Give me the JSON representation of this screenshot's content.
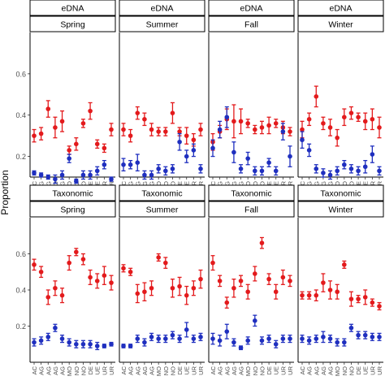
{
  "ylabel": "Proportion",
  "colors": {
    "red": "#e31a1c",
    "blue": "#1f2fbf",
    "strip_bg": "#ffffff",
    "frame": "#000000"
  },
  "chart_data": {
    "type": "scatter",
    "ylabel": "Proportion",
    "grid": false,
    "legend": "none",
    "x_ticks": [
      "AC",
      "AG",
      "AG",
      "AG",
      "AG",
      "MO",
      "NO",
      "NO",
      "DE",
      "UE",
      "UR",
      "UR"
    ],
    "rows": [
      {
        "strip": "eDNA",
        "ylim": [
          0.1,
          0.8
        ],
        "yticks": [
          0.2,
          0.4,
          0.6
        ],
        "ytick_labels": [
          "0.2",
          "0.4",
          "0.6"
        ],
        "panels": [
          {
            "season": "Spring",
            "red": [
              [
                0.3,
                0.03
              ],
              [
                0.31,
                0.03
              ],
              [
                0.43,
                0.04
              ],
              [
                0.34,
                0.05
              ],
              [
                0.37,
                0.05
              ],
              [
                0.23,
                0.02
              ],
              [
                0.26,
                0.03
              ],
              [
                0.36,
                0.02
              ],
              [
                0.42,
                0.04
              ],
              [
                0.26,
                0.02
              ],
              [
                0.24,
                0.02
              ],
              [
                0.33,
                0.03
              ]
            ],
            "blue": [
              [
                0.12,
                0.01
              ],
              [
                0.11,
                0.01
              ],
              [
                0.1,
                0.01
              ],
              [
                0.09,
                0.02
              ],
              [
                0.11,
                0.02
              ],
              [
                0.19,
                0.02
              ],
              [
                0.08,
                0.01
              ],
              [
                0.11,
                0.02
              ],
              [
                0.11,
                0.02
              ],
              [
                0.13,
                0.02
              ],
              [
                0.16,
                0.02
              ],
              [
                0.09,
                0.01
              ]
            ]
          },
          {
            "season": "Summer",
            "red": [
              [
                0.33,
                0.03
              ],
              [
                0.3,
                0.03
              ],
              [
                0.41,
                0.03
              ],
              [
                0.38,
                0.03
              ],
              [
                0.33,
                0.03
              ],
              [
                0.32,
                0.02
              ],
              [
                0.32,
                0.02
              ],
              [
                0.41,
                0.05
              ],
              [
                0.32,
                0.02
              ],
              [
                0.3,
                0.04
              ],
              [
                0.28,
                0.03
              ],
              [
                0.33,
                0.03
              ]
            ],
            "blue": [
              [
                0.16,
                0.03
              ],
              [
                0.16,
                0.02
              ],
              [
                0.17,
                0.04
              ],
              [
                0.11,
                0.02
              ],
              [
                0.11,
                0.02
              ],
              [
                0.14,
                0.02
              ],
              [
                0.13,
                0.02
              ],
              [
                0.14,
                0.02
              ],
              [
                0.27,
                0.04
              ],
              [
                0.2,
                0.03
              ],
              [
                0.23,
                0.03
              ],
              [
                0.14,
                0.02
              ]
            ]
          },
          {
            "season": "Fall",
            "red": [
              [
                0.27,
                0.04
              ],
              [
                0.32,
                0.03
              ],
              [
                0.38,
                0.05
              ],
              [
                0.37,
                0.08
              ],
              [
                0.37,
                0.06
              ],
              [
                0.36,
                0.02
              ],
              [
                0.33,
                0.02
              ],
              [
                0.34,
                0.03
              ],
              [
                0.35,
                0.04
              ],
              [
                0.36,
                0.02
              ],
              [
                0.34,
                0.03
              ],
              [
                0.32,
                0.02
              ]
            ],
            "blue": [
              [
                0.24,
                0.04
              ],
              [
                0.33,
                0.04
              ],
              [
                0.39,
                0.05
              ],
              [
                0.22,
                0.05
              ],
              [
                0.14,
                0.02
              ],
              [
                0.19,
                0.03
              ],
              [
                0.13,
                0.02
              ],
              [
                0.13,
                0.02
              ],
              [
                0.17,
                0.02
              ],
              [
                0.13,
                0.02
              ],
              [
                0.32,
                0.04
              ],
              [
                0.2,
                0.05
              ]
            ]
          },
          {
            "season": "Winter",
            "red": [
              [
                0.33,
                0.04
              ],
              [
                0.38,
                0.03
              ],
              [
                0.49,
                0.05
              ],
              [
                0.36,
                0.03
              ],
              [
                0.34,
                0.04
              ],
              [
                0.29,
                0.04
              ],
              [
                0.39,
                0.04
              ],
              [
                0.41,
                0.03
              ],
              [
                0.39,
                0.02
              ],
              [
                0.37,
                0.04
              ],
              [
                0.38,
                0.05
              ],
              [
                0.34,
                0.05
              ]
            ],
            "blue": [
              [
                0.28,
                0.04
              ],
              [
                0.23,
                0.03
              ],
              [
                0.14,
                0.02
              ],
              [
                0.12,
                0.02
              ],
              [
                0.11,
                0.02
              ],
              [
                0.13,
                0.02
              ],
              [
                0.16,
                0.02
              ],
              [
                0.14,
                0.02
              ],
              [
                0.13,
                0.02
              ],
              [
                0.15,
                0.03
              ],
              [
                0.21,
                0.04
              ],
              [
                0.13,
                0.02
              ]
            ]
          }
        ]
      },
      {
        "strip": "Taxonomic",
        "ylim": [
          0.0,
          0.8
        ],
        "yticks": [
          0.2,
          0.4,
          0.6
        ],
        "ytick_labels": [
          "0.2",
          "0.4",
          "0.6"
        ],
        "panels": [
          {
            "season": "Spring",
            "red": [
              [
                0.54,
                0.03
              ],
              [
                0.5,
                0.03
              ],
              [
                0.36,
                0.04
              ],
              [
                0.41,
                0.04
              ],
              [
                0.37,
                0.04
              ],
              [
                0.55,
                0.04
              ],
              [
                0.61,
                0.02
              ],
              [
                0.57,
                0.03
              ],
              [
                0.47,
                0.04
              ],
              [
                0.45,
                0.04
              ],
              [
                0.48,
                0.05
              ],
              [
                0.44,
                0.04
              ]
            ],
            "blue": [
              [
                0.11,
                0.02
              ],
              [
                0.12,
                0.02
              ],
              [
                0.14,
                0.02
              ],
              [
                0.19,
                0.02
              ],
              [
                0.13,
                0.02
              ],
              [
                0.11,
                0.02
              ],
              [
                0.1,
                0.02
              ],
              [
                0.1,
                0.02
              ],
              [
                0.1,
                0.02
              ],
              [
                0.09,
                0.02
              ],
              [
                0.09,
                0.01
              ],
              [
                0.1,
                0.01
              ]
            ]
          },
          {
            "season": "Summer",
            "red": [
              [
                0.52,
                0.02
              ],
              [
                0.5,
                0.02
              ],
              [
                0.38,
                0.05
              ],
              [
                0.39,
                0.05
              ],
              [
                0.41,
                0.04
              ],
              [
                0.58,
                0.02
              ],
              [
                0.55,
                0.03
              ],
              [
                0.41,
                0.05
              ],
              [
                0.42,
                0.05
              ],
              [
                0.37,
                0.05
              ],
              [
                0.41,
                0.04
              ],
              [
                0.46,
                0.05
              ]
            ],
            "blue": [
              [
                0.09,
                0.01
              ],
              [
                0.09,
                0.01
              ],
              [
                0.13,
                0.02
              ],
              [
                0.11,
                0.02
              ],
              [
                0.14,
                0.02
              ],
              [
                0.13,
                0.02
              ],
              [
                0.13,
                0.02
              ],
              [
                0.15,
                0.02
              ],
              [
                0.13,
                0.02
              ],
              [
                0.18,
                0.04
              ],
              [
                0.13,
                0.02
              ],
              [
                0.14,
                0.02
              ]
            ]
          },
          {
            "season": "Fall",
            "red": [
              [
                0.55,
                0.04
              ],
              [
                0.45,
                0.03
              ],
              [
                0.33,
                0.03
              ],
              [
                0.41,
                0.05
              ],
              [
                0.45,
                0.03
              ],
              [
                0.39,
                0.04
              ],
              [
                0.49,
                0.04
              ],
              [
                0.66,
                0.03
              ],
              [
                0.46,
                0.03
              ],
              [
                0.39,
                0.04
              ],
              [
                0.47,
                0.04
              ],
              [
                0.45,
                0.03
              ]
            ],
            "blue": [
              [
                0.13,
                0.03
              ],
              [
                0.12,
                0.03
              ],
              [
                0.17,
                0.04
              ],
              [
                0.11,
                0.02
              ],
              [
                0.08,
                0.01
              ],
              [
                0.12,
                0.02
              ],
              [
                0.23,
                0.03
              ],
              [
                0.12,
                0.02
              ],
              [
                0.13,
                0.02
              ],
              [
                0.1,
                0.02
              ],
              [
                0.13,
                0.02
              ],
              [
                0.13,
                0.02
              ]
            ]
          },
          {
            "season": "Winter",
            "red": [
              [
                0.37,
                0.02
              ],
              [
                0.37,
                0.02
              ],
              [
                0.37,
                0.03
              ],
              [
                0.44,
                0.05
              ],
              [
                0.4,
                0.05
              ],
              [
                0.39,
                0.04
              ],
              [
                0.54,
                0.02
              ],
              [
                0.35,
                0.04
              ],
              [
                0.35,
                0.02
              ],
              [
                0.36,
                0.04
              ],
              [
                0.33,
                0.02
              ],
              [
                0.31,
                0.02
              ]
            ],
            "blue": [
              [
                0.13,
                0.02
              ],
              [
                0.12,
                0.02
              ],
              [
                0.13,
                0.02
              ],
              [
                0.14,
                0.03
              ],
              [
                0.13,
                0.02
              ],
              [
                0.11,
                0.02
              ],
              [
                0.11,
                0.02
              ],
              [
                0.19,
                0.02
              ],
              [
                0.15,
                0.02
              ],
              [
                0.15,
                0.02
              ],
              [
                0.14,
                0.02
              ],
              [
                0.14,
                0.02
              ]
            ]
          }
        ]
      }
    ]
  }
}
